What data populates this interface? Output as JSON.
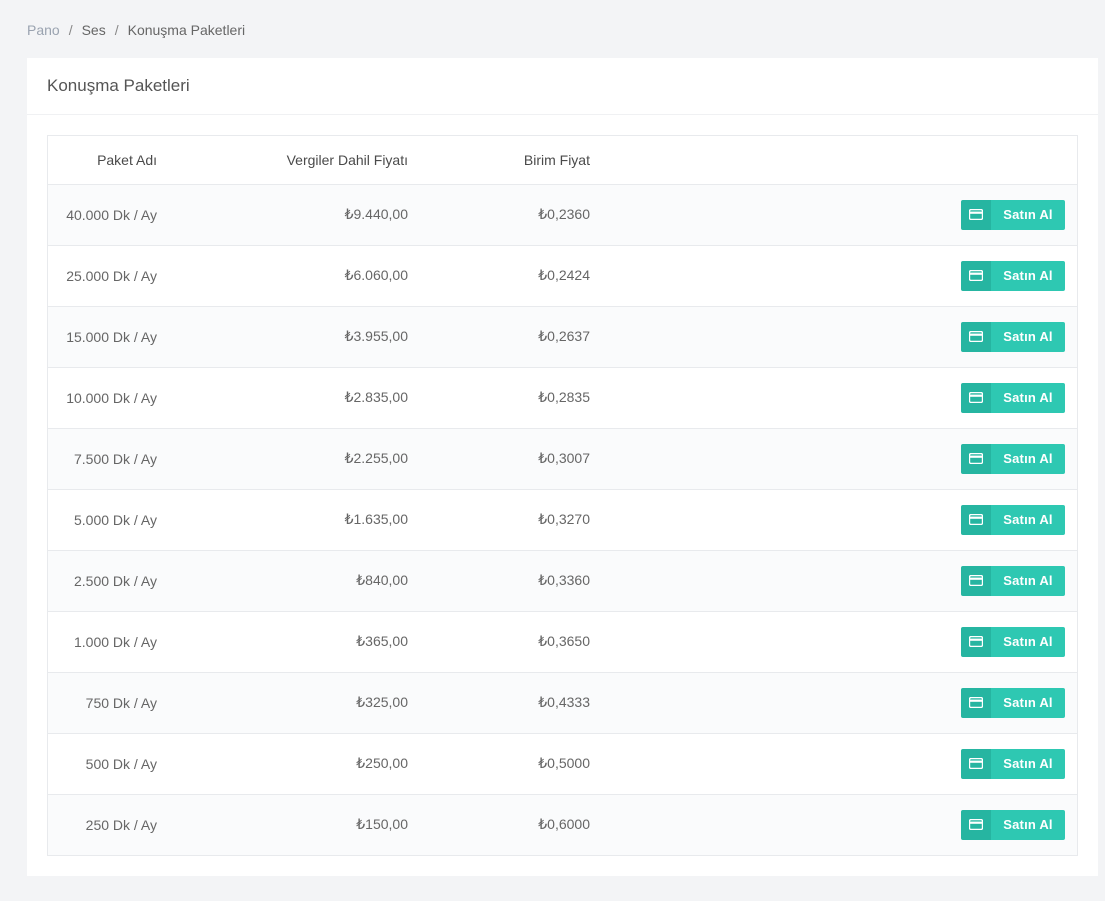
{
  "breadcrumb": {
    "items": [
      "Pano",
      "Ses",
      "Konuşma Paketleri"
    ],
    "separator": "/"
  },
  "page": {
    "title": "Konuşma Paketleri"
  },
  "table": {
    "headers": {
      "name": "Paket Adı",
      "price": "Vergiler Dahil Fiyatı",
      "unit": "Birim Fiyat"
    },
    "buy_label": "Satın Al",
    "buy_icon": "credit-card-icon",
    "rows": [
      {
        "name": "40.000 Dk / Ay",
        "price": "₺9.440,00",
        "unit": "₺0,2360"
      },
      {
        "name": "25.000 Dk / Ay",
        "price": "₺6.060,00",
        "unit": "₺0,2424"
      },
      {
        "name": "15.000 Dk / Ay",
        "price": "₺3.955,00",
        "unit": "₺0,2637"
      },
      {
        "name": "10.000 Dk / Ay",
        "price": "₺2.835,00",
        "unit": "₺0,2835"
      },
      {
        "name": "7.500 Dk / Ay",
        "price": "₺2.255,00",
        "unit": "₺0,3007"
      },
      {
        "name": "5.000 Dk / Ay",
        "price": "₺1.635,00",
        "unit": "₺0,3270"
      },
      {
        "name": "2.500 Dk / Ay",
        "price": "₺840,00",
        "unit": "₺0,3360"
      },
      {
        "name": "1.000 Dk / Ay",
        "price": "₺365,00",
        "unit": "₺0,3650"
      },
      {
        "name": "750 Dk / Ay",
        "price": "₺325,00",
        "unit": "₺0,4333"
      },
      {
        "name": "500 Dk / Ay",
        "price": "₺250,00",
        "unit": "₺0,5000"
      },
      {
        "name": "250 Dk / Ay",
        "price": "₺150,00",
        "unit": "₺0,6000"
      }
    ]
  },
  "colors": {
    "accent": "#2ec8b2",
    "accent_dark": "#26b5a1",
    "background": "#f3f4f6"
  }
}
